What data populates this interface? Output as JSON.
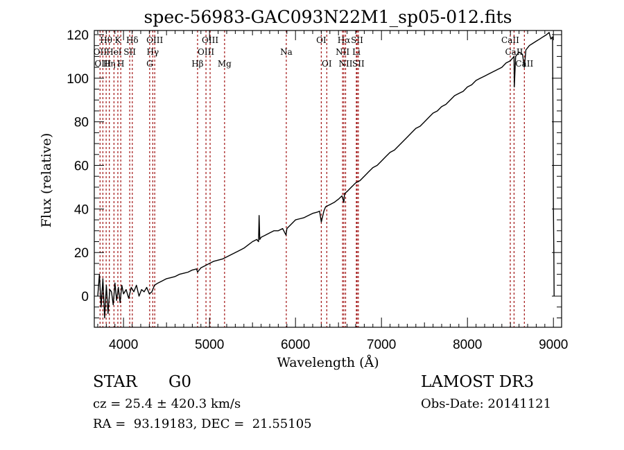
{
  "chart_data": {
    "type": "line",
    "title": "spec-56983-GAC093N22M1_sp05-012.fits",
    "xlabel": "Wavelength (Å)",
    "ylabel": "Flux (relative)",
    "xlim": [
      3660,
      9095
    ],
    "ylim": [
      -14.3,
      121.9
    ],
    "grid": false,
    "legend": "none",
    "x_ticks": [
      4000,
      5000,
      6000,
      7000,
      8000,
      9000
    ],
    "x_tick_labels": [
      "4000",
      "5000",
      "6000",
      "7000",
      "8000",
      "9000"
    ],
    "y_ticks": [
      0,
      20,
      40,
      60,
      80,
      100,
      120
    ],
    "y_tick_labels": [
      "0",
      "20",
      "40",
      "60",
      "80",
      "100",
      "120"
    ],
    "line_color": "#000000",
    "marker_color": "#a01010",
    "series": [
      {
        "name": "flux",
        "x": [
          3700,
          3720,
          3740,
          3760,
          3780,
          3800,
          3820,
          3840,
          3860,
          3880,
          3900,
          3920,
          3940,
          3960,
          3980,
          4000,
          4030,
          4060,
          4090,
          4120,
          4150,
          4180,
          4210,
          4240,
          4270,
          4300,
          4330,
          4360,
          4400,
          4450,
          4500,
          4550,
          4600,
          4650,
          4700,
          4750,
          4800,
          4850,
          4861,
          4900,
          4950,
          5000,
          5050,
          5100,
          5150,
          5200,
          5250,
          5300,
          5350,
          5400,
          5450,
          5500,
          5550,
          5570,
          5577,
          5585,
          5600,
          5650,
          5700,
          5750,
          5800,
          5850,
          5890,
          5900,
          5950,
          6000,
          6050,
          6100,
          6150,
          6200,
          6250,
          6280,
          6300,
          6330,
          6350,
          6400,
          6450,
          6500,
          6540,
          6563,
          6570,
          6600,
          6650,
          6700,
          6750,
          6800,
          6850,
          6900,
          6950,
          7000,
          7050,
          7100,
          7150,
          7200,
          7250,
          7300,
          7350,
          7400,
          7450,
          7500,
          7550,
          7600,
          7650,
          7700,
          7750,
          7800,
          7850,
          7900,
          7950,
          8000,
          8050,
          8100,
          8150,
          8200,
          8250,
          8300,
          8350,
          8400,
          8450,
          8498,
          8542,
          8545,
          8560,
          8600,
          8640,
          8662,
          8680,
          8720,
          8760,
          8800,
          8840,
          8880,
          8920,
          8950,
          8970,
          8990,
          9000,
          9005,
          9008
        ],
        "y": [
          0,
          10,
          -5,
          8,
          -10,
          5,
          -8,
          3,
          2,
          -4,
          6,
          -2,
          4,
          -3,
          5,
          1,
          3,
          -1,
          4,
          2,
          5,
          0,
          3,
          2,
          4,
          1,
          2,
          5,
          6,
          7,
          8,
          8.5,
          9,
          10,
          10.5,
          11,
          12,
          12.5,
          11,
          13,
          14,
          15,
          16,
          16.5,
          17,
          18,
          19,
          20,
          21,
          22,
          23.5,
          25,
          26,
          25,
          37,
          26,
          27,
          28,
          29,
          30,
          30,
          31,
          28,
          31,
          33,
          35,
          35.5,
          36,
          37,
          38,
          38.5,
          39,
          34,
          39,
          41,
          42,
          43,
          44.5,
          46,
          43,
          47,
          48,
          50,
          52,
          53,
          55,
          57,
          59,
          60,
          62,
          64,
          66,
          67,
          69,
          71,
          73,
          75,
          77,
          78,
          80,
          82,
          84,
          85,
          87,
          88,
          90,
          92,
          93,
          94,
          96,
          97,
          99,
          100,
          101,
          102,
          103,
          104,
          105,
          107,
          108,
          110,
          96,
          110,
          112,
          111,
          105,
          113,
          115,
          116,
          117,
          118,
          119,
          120,
          121,
          118,
          119,
          40,
          20,
          0
        ]
      }
    ],
    "line_markers": [
      {
        "label": "Hθ",
        "wave": 3798,
        "row": 0
      },
      {
        "label": "OII",
        "wave": 3727,
        "row": 1
      },
      {
        "label": "OIII",
        "wave": 3760,
        "row": 2
      },
      {
        "label": "K",
        "wave": 3934,
        "row": 0
      },
      {
        "label": "HeI",
        "wave": 3889,
        "row": 1
      },
      {
        "label": "Hη",
        "wave": 3835,
        "row": 2
      },
      {
        "label": "H",
        "wave": 3968,
        "row": 2
      },
      {
        "label": "SII",
        "wave": 4072,
        "row": 1
      },
      {
        "label": "Hδ",
        "wave": 4102,
        "row": 0
      },
      {
        "label": "OIII",
        "wave": 4363,
        "row": 0
      },
      {
        "label": "Hγ",
        "wave": 4340,
        "row": 1
      },
      {
        "label": "G",
        "wave": 4304,
        "row": 2
      },
      {
        "label": "Hβ",
        "wave": 4861,
        "row": 2
      },
      {
        "label": "OIII",
        "wave": 5007,
        "row": 0
      },
      {
        "label": "OIII",
        "wave": 4959,
        "row": 1
      },
      {
        "label": "Mg",
        "wave": 5175,
        "row": 2
      },
      {
        "label": "Na",
        "wave": 5893,
        "row": 1
      },
      {
        "label": "OI",
        "wave": 6300,
        "row": 0
      },
      {
        "label": "OI",
        "wave": 6364,
        "row": 2
      },
      {
        "label": "Hα",
        "wave": 6563,
        "row": 0
      },
      {
        "label": "NII",
        "wave": 6548,
        "row": 1
      },
      {
        "label": "NII",
        "wave": 6583,
        "row": 2
      },
      {
        "label": "SII",
        "wave": 6716,
        "row": 0
      },
      {
        "label": "Li",
        "wave": 6708,
        "row": 1
      },
      {
        "label": "SII",
        "wave": 6731,
        "row": 2
      },
      {
        "label": "CaII",
        "wave": 8498,
        "row": 0
      },
      {
        "label": "CaII",
        "wave": 8542,
        "row": 1
      },
      {
        "label": "CaII",
        "wave": 8662,
        "row": 2
      }
    ]
  },
  "info": {
    "object_class": "STAR",
    "subclass": "G0",
    "redshift_line": "cz = 25.4 ± 420.3 km/s",
    "coords_line": "RA =  93.19183, DEC =  21.55105",
    "survey": "LAMOST DR3",
    "obs_date_line": "Obs-Date: 20141121"
  }
}
